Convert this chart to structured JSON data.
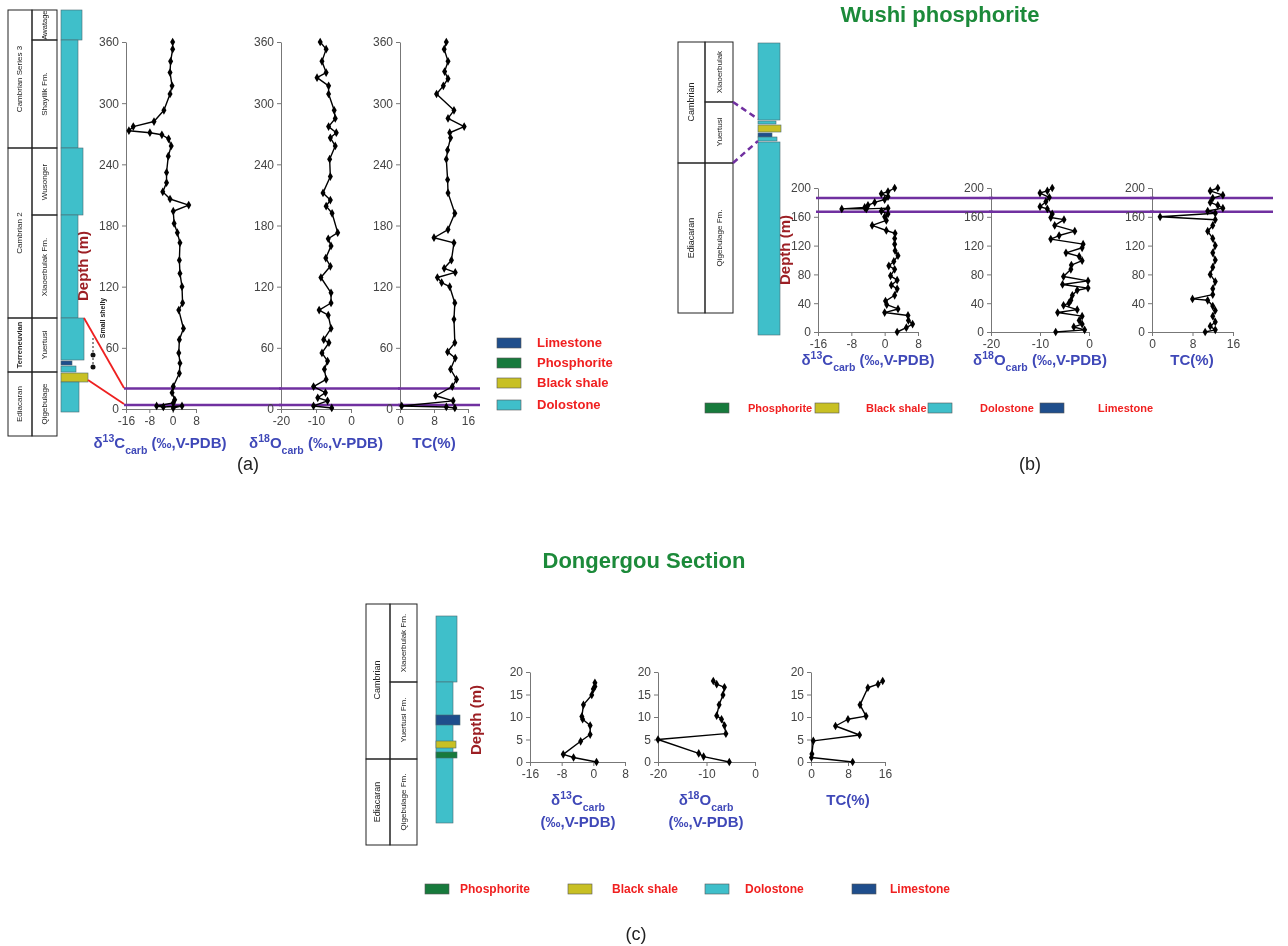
{
  "chart_data": [
    {
      "type": "line",
      "xlabel": "δ$^{13}$C$_{carb}$ (‰,V-PDB)",
      "ylabel": "Depth (m)",
      "xlim": [
        -16,
        8
      ],
      "xticks": [
        -16,
        -8,
        0,
        8
      ],
      "ylim": [
        0,
        360
      ],
      "yticks": [
        0,
        60,
        120,
        180,
        240,
        300,
        360
      ],
      "marker": "diamond",
      "series": [
        {
          "color": "#000000",
          "x": [
            0,
            0,
            -0.7,
            -0.9,
            -0.2,
            -0.9,
            -3,
            -6.4,
            -13.5,
            -15,
            -7.8,
            -3.7,
            -1.4,
            -0.5,
            -1.5,
            -2.1,
            -2.1,
            -3.4,
            -0.9,
            5.5,
            0.2,
            0.5,
            1.6,
            2.5,
            2.3,
            2.5,
            3.2,
            3.4,
            2.1,
            3.7,
            2.3,
            2.1,
            2.5,
            2.3,
            0.2,
            -0.2,
            0.7,
            0.2,
            -5.5,
            -3.2,
            3.2,
            0.2
          ],
          "values": [
            360,
            353,
            341,
            330,
            317,
            309,
            293,
            282,
            277,
            273,
            271,
            269,
            265,
            258,
            248,
            232,
            222,
            213,
            206,
            200,
            194,
            182,
            173,
            163,
            146,
            133,
            120,
            104,
            97,
            79,
            68,
            55,
            45,
            35,
            22,
            16,
            9,
            6,
            3,
            2,
            3,
            1
          ]
        }
      ],
      "ref_lines": [
        {
          "axis": "y",
          "value": 4,
          "color": "#7030a0"
        },
        {
          "axis": "y",
          "value": 20,
          "color": "#7030a0"
        }
      ],
      "annotations": [
        "Cambrian Series 3",
        "Cambrian 2",
        "Terreneuvian",
        "Ediacaran",
        "Awatage",
        "Shayilik Fm.",
        "Wusonger",
        "Xiaoerbulak Fm.",
        "Yuertusi",
        "Qigebulage",
        "Small shelly",
        "Limestone",
        "Phosphorite",
        "Black shale",
        "Dolostone",
        "(a)"
      ]
    },
    {
      "type": "line",
      "xlabel": "δ$^{18}$O$_{carb}$ (‰,V-PDB)",
      "xlim": [
        -20,
        0
      ],
      "xticks": [
        -20,
        -10,
        0
      ],
      "ylim": [
        0,
        360
      ],
      "yticks": [
        0,
        60,
        120,
        180,
        240,
        300,
        360
      ],
      "marker": "diamond",
      "series": [
        {
          "color": "#000000",
          "x": [
            -8.8,
            -7.1,
            -8.3,
            -7.1,
            -9.7,
            -6.4,
            -6.4,
            -4.8,
            -4.5,
            -6.4,
            -4.2,
            -5.9,
            -4.5,
            -6.1,
            -5.9,
            -8,
            -5.9,
            -7.1,
            -5.4,
            -3.8,
            -6.5,
            -5.7,
            -7.2,
            -5.9,
            -8.6,
            -5.7,
            -5.7,
            -9.1,
            -6.5,
            -5.7,
            -7.8,
            -6.3,
            -8.3,
            -6.7,
            -7.6,
            -7.1,
            -10.7,
            -7.3,
            -9.5,
            -6.7,
            -10.7,
            -5.5
          ],
          "values": [
            360,
            353,
            341,
            330,
            325,
            317,
            309,
            293,
            285,
            277,
            271,
            266,
            258,
            245,
            228,
            212,
            205,
            199,
            192,
            173,
            167,
            160,
            148,
            140,
            129,
            114,
            104,
            97,
            92,
            79,
            68,
            65,
            55,
            47,
            39,
            29,
            22,
            16,
            11,
            8,
            3,
            1
          ]
        }
      ],
      "ref_lines": [
        {
          "axis": "y",
          "value": 4,
          "color": "#7030a0"
        },
        {
          "axis": "y",
          "value": 20,
          "color": "#7030a0"
        }
      ]
    },
    {
      "type": "line",
      "xlabel": "TC(%)",
      "xlim": [
        0,
        16
      ],
      "xticks": [
        0,
        8,
        16
      ],
      "ylim": [
        0,
        360
      ],
      "yticks": [
        0,
        60,
        120,
        180,
        240,
        300,
        360
      ],
      "marker": "diamond",
      "series": [
        {
          "color": "#000000",
          "x": [
            10.9,
            10.4,
            11.3,
            10.5,
            11.3,
            10.2,
            8.6,
            12.7,
            11.3,
            15.1,
            11.7,
            11.9,
            11.2,
            10.9,
            11.2,
            11.3,
            12.9,
            11.3,
            8,
            12.7,
            12.1,
            10.4,
            13,
            8.8,
            9.8,
            11.7,
            12.9,
            12.7,
            12.9,
            11.2,
            13,
            11.9,
            13.3,
            12.3,
            8.4,
            12.5,
            0.4,
            10.9,
            12.9
          ],
          "values": [
            360,
            353,
            341,
            331,
            324,
            317,
            309,
            293,
            285,
            277,
            271,
            266,
            254,
            245,
            225,
            212,
            192,
            176,
            168,
            163,
            146,
            138,
            134,
            129,
            124,
            120,
            104,
            88,
            65,
            56,
            50,
            39,
            29,
            22,
            13,
            8,
            3,
            2,
            1
          ]
        }
      ],
      "ref_lines": [
        {
          "axis": "y",
          "value": 4,
          "color": "#7030a0"
        },
        {
          "axis": "y",
          "value": 20,
          "color": "#7030a0"
        }
      ]
    },
    {
      "type": "line",
      "title": "Wushi phosphorite",
      "xlabel": "δ$^{13}$C$_{carb}$ (‰,V-PDB)",
      "ylabel": "Depth (m)",
      "xlim": [
        -16,
        8
      ],
      "xticks": [
        -16,
        -8,
        0,
        8
      ],
      "ylim": [
        0,
        200
      ],
      "yticks": [
        0,
        40,
        80,
        120,
        160,
        200
      ],
      "marker": "diamond",
      "series": [
        {
          "color": "#000000",
          "x": [
            2.4,
            0.8,
            -0.8,
            0.8,
            0,
            -2.4,
            -4,
            -4.8,
            -10.3,
            -4.4,
            0.8,
            -0.8,
            0.8,
            0,
            0.4,
            -3,
            0.4,
            2.5,
            2.4,
            2.4,
            2.5,
            3.2,
            2.2,
            1,
            2.4,
            1.4,
            3,
            1.6,
            3,
            2.4,
            0.2,
            0.5,
            3.2,
            0,
            5.6,
            5.7,
            6.7,
            5.2,
            3
          ],
          "values": [
            200,
            195,
            192,
            188,
            184,
            180,
            176,
            173,
            171,
            171,
            172,
            168,
            164,
            160,
            155,
            148,
            141,
            137,
            130,
            122,
            113,
            106,
            98,
            92,
            87,
            78,
            72,
            65,
            60,
            51,
            43,
            38,
            32,
            27,
            23,
            16,
            11,
            6,
            0
          ]
        }
      ],
      "ref_lines": [
        {
          "axis": "y",
          "value": 167,
          "color": "#7030a0"
        },
        {
          "axis": "y",
          "value": 186,
          "color": "#7030a0"
        }
      ],
      "annotations": [
        "Cambrian",
        "Ediacaran",
        "Xiaoerbulak",
        "Yuertusi",
        "Qigebulage Fm.",
        "Phosphorite",
        "Black shale",
        "Dolostone",
        "Limestone",
        "(b)"
      ]
    },
    {
      "type": "line",
      "xlabel": "δ$^{18}$O$_{carb}$ (‰,V-PDB)",
      "xlim": [
        -20,
        0
      ],
      "xticks": [
        -20,
        -10,
        0
      ],
      "ylim": [
        0,
        200
      ],
      "yticks": [
        0,
        40,
        80,
        120,
        160,
        200
      ],
      "marker": "diamond",
      "series": [
        {
          "color": "#000000",
          "x": [
            -7.5,
            -8.5,
            -10,
            -8.1,
            -8.8,
            -10,
            -8.5,
            -7.5,
            -7.8,
            -5.1,
            -7,
            -2.9,
            -6.1,
            -7.8,
            -1.2,
            -1.4,
            -4.7,
            -2,
            -1.4,
            -3.6,
            -3.7,
            -5.2,
            -0.2,
            -5.4,
            -0.2,
            -2.4,
            -3.4,
            -3.7,
            -4.1,
            -5.2,
            -2.4,
            -6.4,
            -1.4,
            -2,
            -1.4,
            -3.1,
            -0.9,
            -6.8
          ],
          "values": [
            200,
            196,
            193,
            187,
            181,
            174,
            171,
            164,
            159,
            156,
            148,
            140,
            134,
            129,
            122,
            117,
            110,
            105,
            99,
            93,
            87,
            77,
            71,
            66,
            61,
            58,
            51,
            44,
            40,
            37,
            31,
            27,
            22,
            16,
            11,
            7,
            3,
            0
          ]
        }
      ],
      "ref_lines": [
        {
          "axis": "y",
          "value": 167,
          "color": "#7030a0"
        },
        {
          "axis": "y",
          "value": 186,
          "color": "#7030a0"
        }
      ]
    },
    {
      "type": "line",
      "xlabel": "TC(%)",
      "xlim": [
        0,
        16
      ],
      "xticks": [
        0,
        8,
        16
      ],
      "ylim": [
        0,
        200
      ],
      "yticks": [
        0,
        40,
        80,
        120,
        160,
        200
      ],
      "marker": "diamond",
      "series": [
        {
          "color": "#000000",
          "x": [
            13,
            11.5,
            14,
            12,
            11.5,
            13,
            14,
            11,
            12.5,
            1.6,
            12.5,
            12,
            11,
            12,
            12.5,
            12,
            12.5,
            12,
            11.5,
            12.5,
            12,
            12,
            8,
            11,
            12,
            12.5,
            12,
            12.5,
            11.5,
            12.5,
            10.5
          ],
          "values": [
            200,
            196,
            190,
            186,
            180,
            176,
            172,
            168,
            165,
            160,
            156,
            148,
            140,
            130,
            120,
            110,
            100,
            90,
            80,
            70,
            60,
            52,
            46,
            44,
            36,
            30,
            22,
            14,
            8,
            3,
            0
          ]
        }
      ],
      "ref_lines": [
        {
          "axis": "y",
          "value": 167,
          "color": "#7030a0"
        },
        {
          "axis": "y",
          "value": 186,
          "color": "#7030a0"
        }
      ]
    },
    {
      "type": "line",
      "title": "Dongergou Section",
      "xlabel": "δ$^{13}$C$_{carb}$\n(‰,V-PDB)",
      "ylabel": "Depth (m)",
      "xlim": [
        -16,
        8
      ],
      "xticks": [
        -16,
        -8,
        0,
        8
      ],
      "ylim": [
        0,
        20
      ],
      "yticks": [
        0,
        5,
        10,
        15,
        20
      ],
      "marker": "diamond",
      "series": [
        {
          "color": "#000000",
          "x": [
            0.4,
            0.4,
            0,
            -0.4,
            -2.5,
            -2.9,
            -2.7,
            -0.8,
            -0.8,
            -3.2,
            -7.6,
            -5,
            0.8
          ],
          "values": [
            17.6,
            16.8,
            16.2,
            14.9,
            12.7,
            10.1,
            9.5,
            8.1,
            6.1,
            4.6,
            1.7,
            1,
            0
          ]
        }
      ],
      "annotations": [
        "Cambrian",
        "Ediacaran",
        "Xiaoerbulak Fm.",
        "Yuertusi Fm.",
        "Qigebulage Fm.",
        "Phosphorite",
        "Black shale",
        "Dolostone",
        "Limestone",
        "(c)"
      ]
    },
    {
      "type": "line",
      "xlabel": "δ$^{18}$O$_{carb}$\n(‰,V-PDB)",
      "xlim": [
        -20,
        0
      ],
      "xticks": [
        -20,
        -10,
        0
      ],
      "ylim": [
        0,
        20
      ],
      "yticks": [
        0,
        5,
        10,
        15,
        20
      ],
      "marker": "diamond",
      "series": [
        {
          "color": "#000000",
          "x": [
            -8.6,
            -7.9,
            -6.3,
            -6.6,
            -7.4,
            -7.9,
            -6.9,
            -6.3,
            -6,
            -20,
            -11.6,
            -10.6,
            -5.3
          ],
          "values": [
            18,
            17.3,
            16.6,
            14.9,
            12.7,
            10.3,
            9.5,
            8.1,
            6.3,
            5,
            1.9,
            1.2,
            0
          ]
        }
      ]
    },
    {
      "type": "line",
      "xlabel": "TC(%)",
      "xlim": [
        0,
        16
      ],
      "xticks": [
        0,
        8,
        16
      ],
      "ylim": [
        0,
        20
      ],
      "yticks": [
        0,
        5,
        10,
        15,
        20
      ],
      "marker": "diamond",
      "series": [
        {
          "color": "#000000",
          "x": [
            15.5,
            14.5,
            12.3,
            10.6,
            11.9,
            8,
            5.3,
            10.5,
            0.5,
            0.2,
            0.1,
            9
          ],
          "values": [
            18,
            17.3,
            16.5,
            12.7,
            10.2,
            9.5,
            8,
            6,
            4.7,
            1.8,
            1,
            0
          ]
        }
      ]
    }
  ]
}
